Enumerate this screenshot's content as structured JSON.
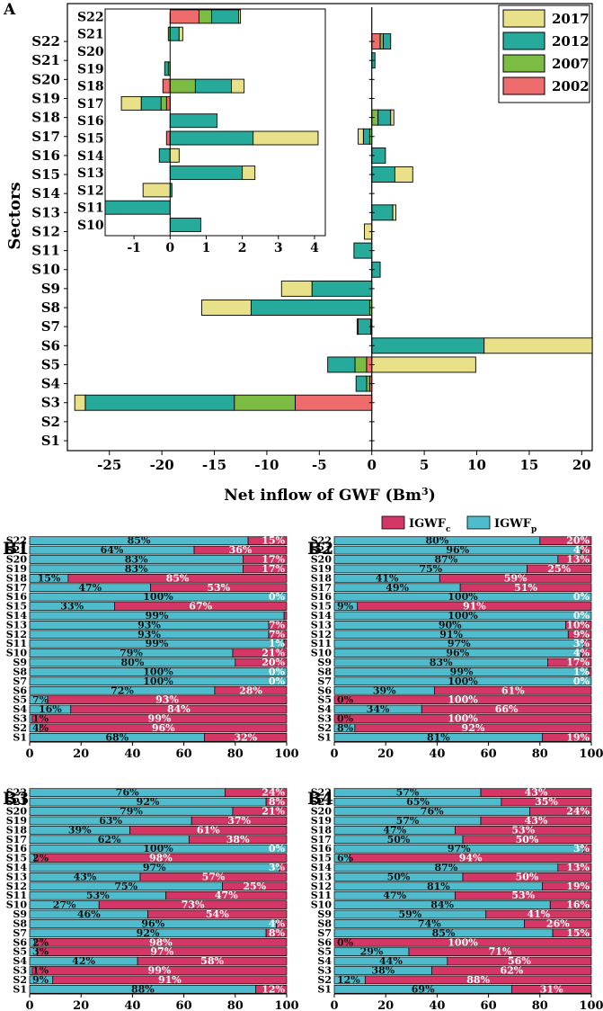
{
  "colors": {
    "c2017": "#e9e08a",
    "c2012": "#26aa9c",
    "c2007": "#7cbc42",
    "c2002": "#ee6c6c",
    "red": "#d43665",
    "cyan": "#4ebccc"
  },
  "chart_data": [
    {
      "id": "A",
      "panel_label": "A",
      "type": "bar",
      "orientation": "horizontal",
      "stacked": true,
      "xlabel": "Net inflow of GWF (Bm",
      "xlabel_sup": "3",
      "xlabel_end": ")",
      "ylabel": "Sectors",
      "xlim": [
        -29,
        21
      ],
      "xticks": [
        "-25",
        "-20",
        "-15",
        "-10",
        "-5",
        "0",
        "5",
        "10",
        "15",
        "20"
      ],
      "categories": [
        "S1",
        "S2",
        "S3",
        "S4",
        "S5",
        "S6",
        "S7",
        "S8",
        "S9",
        "S10",
        "S11",
        "S12",
        "S13",
        "S14",
        "S15",
        "S16",
        "S17",
        "S18",
        "S19",
        "S20",
        "S21",
        "S22"
      ],
      "legend": [
        "2017",
        "2012",
        "2007",
        "2002"
      ],
      "series": [
        {
          "name": "2002",
          "values": [
            0,
            0,
            -7.3,
            -0.2,
            -0.5,
            0,
            0,
            0,
            0,
            0,
            0,
            0,
            0,
            0,
            0,
            0,
            0,
            0,
            0,
            0,
            0,
            0.8
          ]
        },
        {
          "name": "2007",
          "values": [
            0,
            0,
            -5.8,
            -0.3,
            -1.1,
            0,
            -0.1,
            -0.2,
            0,
            0,
            0,
            0,
            0,
            0,
            0,
            0,
            -0.2,
            0.6,
            0,
            0,
            0,
            0.3
          ]
        },
        {
          "name": "2012",
          "values": [
            0,
            0,
            -14.2,
            -1.0,
            -2.6,
            10.7,
            -1.2,
            -11.3,
            -5.7,
            0.8,
            -1.7,
            0,
            2.0,
            0,
            2.2,
            1.3,
            -0.6,
            1.2,
            0,
            0,
            0.3,
            0.7
          ]
        },
        {
          "name": "2017",
          "values": [
            0,
            0,
            -1.0,
            0,
            9.9,
            10.3,
            -0.1,
            -4.7,
            -2.9,
            0,
            0,
            -0.7,
            0.3,
            0,
            1.7,
            0,
            -0.5,
            0.3,
            0,
            0,
            0,
            0
          ]
        }
      ]
    },
    {
      "id": "A-inset",
      "type": "bar",
      "orientation": "horizontal",
      "stacked": true,
      "xlim": [
        -1.8,
        4.3
      ],
      "xticks": [
        "-1",
        "0",
        "1",
        "2",
        "3",
        "4"
      ],
      "categories": [
        "S10",
        "S11",
        "S12",
        "S13",
        "S14",
        "S15",
        "S16",
        "S17",
        "S18",
        "S19",
        "S20",
        "S21",
        "S22"
      ],
      "series": [
        {
          "name": "2002",
          "values": [
            0,
            0,
            0,
            0,
            0,
            -0.1,
            0,
            -0.1,
            -0.2,
            0,
            0,
            0,
            0.8
          ]
        },
        {
          "name": "2007",
          "values": [
            0,
            0,
            0,
            0,
            0,
            0,
            0,
            -0.15,
            0.7,
            -0.05,
            0,
            -0.05,
            0.35
          ]
        },
        {
          "name": "2012",
          "values": [
            0.85,
            -1.8,
            0.05,
            2.0,
            -0.3,
            2.3,
            1.3,
            -0.55,
            1.0,
            -0.1,
            0,
            0.25,
            0.75
          ]
        },
        {
          "name": "2017",
          "values": [
            0,
            0,
            -0.75,
            0.35,
            0.25,
            1.8,
            0,
            -0.55,
            0.35,
            0,
            0,
            0.1,
            0.05
          ]
        }
      ]
    },
    {
      "id": "B1",
      "panel_label": "B1",
      "type": "bar",
      "orientation": "horizontal",
      "stacked": true,
      "xlim": [
        0,
        100
      ],
      "xticks": [
        "0",
        "20",
        "40",
        "60",
        "80",
        "100"
      ],
      "categories": [
        "S1",
        "S2",
        "S3",
        "S4",
        "S5",
        "S6",
        "S7",
        "S8",
        "S9",
        "S10",
        "S11",
        "S12",
        "S13",
        "S14",
        "S15",
        "S16",
        "S17",
        "S18",
        "S19",
        "S20",
        "S21",
        "S22"
      ],
      "series": [
        {
          "name": "IGWFp",
          "values": [
            68,
            4,
            1,
            16,
            7,
            72,
            100,
            100,
            80,
            79,
            99,
            93,
            93,
            99,
            33,
            100,
            47,
            15,
            83,
            83,
            64,
            85
          ],
          "labels": [
            "68%",
            "4%",
            "1%",
            "16%",
            "7%",
            "72%",
            "100%",
            "100%",
            "80%",
            "79%",
            "99%",
            "93%",
            "93%",
            "99%",
            "33%",
            "100%",
            "47%",
            "15%",
            "83%",
            "83%",
            "64%",
            "85%"
          ]
        },
        {
          "name": "IGWFc",
          "values": [
            32,
            96,
            99,
            84,
            93,
            28,
            0,
            0,
            20,
            21,
            1,
            7,
            7,
            1,
            67,
            0,
            53,
            85,
            17,
            17,
            36,
            15
          ],
          "labels": [
            "32%",
            "96%",
            "99%",
            "84%",
            "93%",
            "28%",
            "0%",
            "0%",
            "20%",
            "21%",
            "1%",
            "7%",
            "7%",
            "",
            "67%",
            "0%",
            "53%",
            "85%",
            "17%",
            "17%",
            "36%",
            "15%"
          ]
        }
      ]
    },
    {
      "id": "B2",
      "panel_label": "B2",
      "type": "bar",
      "orientation": "horizontal",
      "stacked": true,
      "xlim": [
        0,
        100
      ],
      "xticks": [
        "0",
        "20",
        "40",
        "60",
        "80",
        "100"
      ],
      "legend": [
        "IGWFc",
        "IGWFp"
      ],
      "categories": [
        "S1",
        "S2",
        "S3",
        "S4",
        "S5",
        "S6",
        "S7",
        "S8",
        "S9",
        "S10",
        "S11",
        "S12",
        "S13",
        "S14",
        "S15",
        "S16",
        "S17",
        "S18",
        "S19",
        "S20",
        "S21",
        "S22"
      ],
      "series": [
        {
          "name": "IGWFp",
          "values": [
            81,
            8,
            0,
            34,
            0,
            39,
            100,
            99,
            83,
            96,
            97,
            91,
            90,
            100,
            9,
            100,
            49,
            41,
            75,
            87,
            96,
            80
          ],
          "labels": [
            "81%",
            "8%",
            "0%",
            "34%",
            "0%",
            "39%",
            "100%",
            "99%",
            "83%",
            "96%",
            "97%",
            "91%",
            "90%",
            "100%",
            "9%",
            "100%",
            "49%",
            "41%",
            "75%",
            "87%",
            "96%",
            "80%"
          ]
        },
        {
          "name": "IGWFc",
          "values": [
            19,
            92,
            100,
            66,
            100,
            61,
            0,
            1,
            17,
            4,
            3,
            9,
            10,
            0,
            91,
            0,
            51,
            59,
            25,
            13,
            4,
            20
          ],
          "labels": [
            "19%",
            "92%",
            "100%",
            "66%",
            "100%",
            "61%",
            "0%",
            "1%",
            "17%",
            "4%",
            "3%",
            "9%",
            "10%",
            "0%",
            "91%",
            "0%",
            "51%",
            "59%",
            "25%",
            "13%",
            "4%",
            "20%"
          ]
        }
      ]
    },
    {
      "id": "B3",
      "panel_label": "B3",
      "type": "bar",
      "orientation": "horizontal",
      "stacked": true,
      "xlim": [
        0,
        100
      ],
      "xticks": [
        "0",
        "20",
        "40",
        "60",
        "80",
        "100"
      ],
      "categories": [
        "S1",
        "S2",
        "S3",
        "S4",
        "S5",
        "S6",
        "S7",
        "S8",
        "S9",
        "S10",
        "S11",
        "S12",
        "S13",
        "S14",
        "S15",
        "S16",
        "S17",
        "S18",
        "S19",
        "S20",
        "S21",
        "S22"
      ],
      "series": [
        {
          "name": "IGWFp",
          "values": [
            88,
            9,
            1,
            42,
            3,
            2,
            92,
            96,
            46,
            27,
            53,
            75,
            43,
            97,
            2,
            100,
            62,
            39,
            63,
            79,
            92,
            76
          ],
          "labels": [
            "88%",
            "9%",
            "1%",
            "42%",
            "3%",
            "2%",
            "92%",
            "96%",
            "46%",
            "27%",
            "53%",
            "75%",
            "43%",
            "97%",
            "2%",
            "100%",
            "62%",
            "39%",
            "63%",
            "79%",
            "92%",
            "76%"
          ]
        },
        {
          "name": "IGWFc",
          "values": [
            12,
            91,
            99,
            58,
            97,
            98,
            8,
            4,
            54,
            73,
            47,
            25,
            57,
            3,
            98,
            0,
            38,
            61,
            37,
            21,
            8,
            24
          ],
          "labels": [
            "12%",
            "91%",
            "99%",
            "58%",
            "97%",
            "98%",
            "8%",
            "4%",
            "54%",
            "73%",
            "47%",
            "25%",
            "57%",
            "3%",
            "98%",
            "0%",
            "38%",
            "61%",
            "37%",
            "21%",
            "8%",
            "24%"
          ]
        }
      ]
    },
    {
      "id": "B4",
      "panel_label": "B4",
      "type": "bar",
      "orientation": "horizontal",
      "stacked": true,
      "xlim": [
        0,
        100
      ],
      "xticks": [
        "0",
        "20",
        "40",
        "60",
        "80",
        "100"
      ],
      "categories": [
        "S1",
        "S2",
        "S3",
        "S4",
        "S5",
        "S6",
        "S7",
        "S8",
        "S9",
        "S10",
        "S11",
        "S12",
        "S13",
        "S14",
        "S15",
        "S16",
        "S17",
        "S18",
        "S19",
        "S20",
        "S21",
        "S22"
      ],
      "series": [
        {
          "name": "IGWFp",
          "values": [
            69,
            12,
            38,
            44,
            29,
            0,
            85,
            74,
            59,
            84,
            47,
            81,
            50,
            87,
            6,
            97,
            50,
            47,
            57,
            76,
            65,
            57
          ],
          "labels": [
            "69%",
            "12%",
            "38%",
            "44%",
            "29%",
            "0%",
            "85%",
            "74%",
            "59%",
            "84%",
            "47%",
            "81%",
            "50%",
            "87%",
            "6%",
            "97%",
            "50%",
            "47%",
            "57%",
            "76%",
            "65%",
            "57%"
          ]
        },
        {
          "name": "IGWFc",
          "values": [
            31,
            88,
            62,
            56,
            71,
            100,
            15,
            26,
            41,
            16,
            53,
            19,
            50,
            13,
            94,
            3,
            50,
            53,
            43,
            24,
            35,
            43
          ],
          "labels": [
            "31%",
            "88%",
            "62%",
            "56%",
            "71%",
            "100%",
            "15%",
            "26%",
            "41%",
            "16%",
            "53%",
            "19%",
            "50%",
            "13%",
            "94%",
            "3%",
            "50%",
            "53%",
            "43%",
            "24%",
            "35%",
            "43%"
          ]
        }
      ]
    }
  ]
}
